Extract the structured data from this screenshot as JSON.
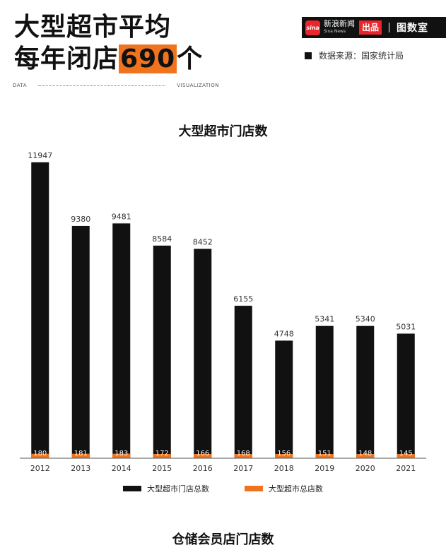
{
  "headline": {
    "line1": "大型超市平均",
    "line2_prefix": "每年闭店",
    "line2_number": "690",
    "line2_suffix": "个"
  },
  "brand": {
    "sina_cn": "新浪新闻",
    "sina_en": "Sina News",
    "chupin": "出品",
    "separator": "|",
    "tushi": "图数室"
  },
  "source": "数据来源：国家统计局",
  "tags": {
    "left": "DATA",
    "right": "VISUALIZATION"
  },
  "colors": {
    "total": "#111111",
    "closed": "#f0741e",
    "accent": "#f0741e"
  },
  "chart_data": {
    "type": "bar",
    "title": "大型超市门店数",
    "categories": [
      "2012",
      "2013",
      "2014",
      "2015",
      "2016",
      "2017",
      "2018",
      "2019",
      "2020",
      "2021"
    ],
    "series": [
      {
        "name": "大型超市门店总数",
        "values": [
          11947,
          9380,
          9481,
          8584,
          8452,
          6155,
          4748,
          5341,
          5340,
          5031
        ]
      },
      {
        "name": "大型超市总店数",
        "values": [
          180,
          181,
          183,
          172,
          166,
          168,
          156,
          151,
          148,
          145
        ]
      }
    ],
    "ylim": [
      0,
      12400
    ],
    "legend_position": "bottom",
    "grid": false
  },
  "next_chart_title": "仓储会员店门店数"
}
